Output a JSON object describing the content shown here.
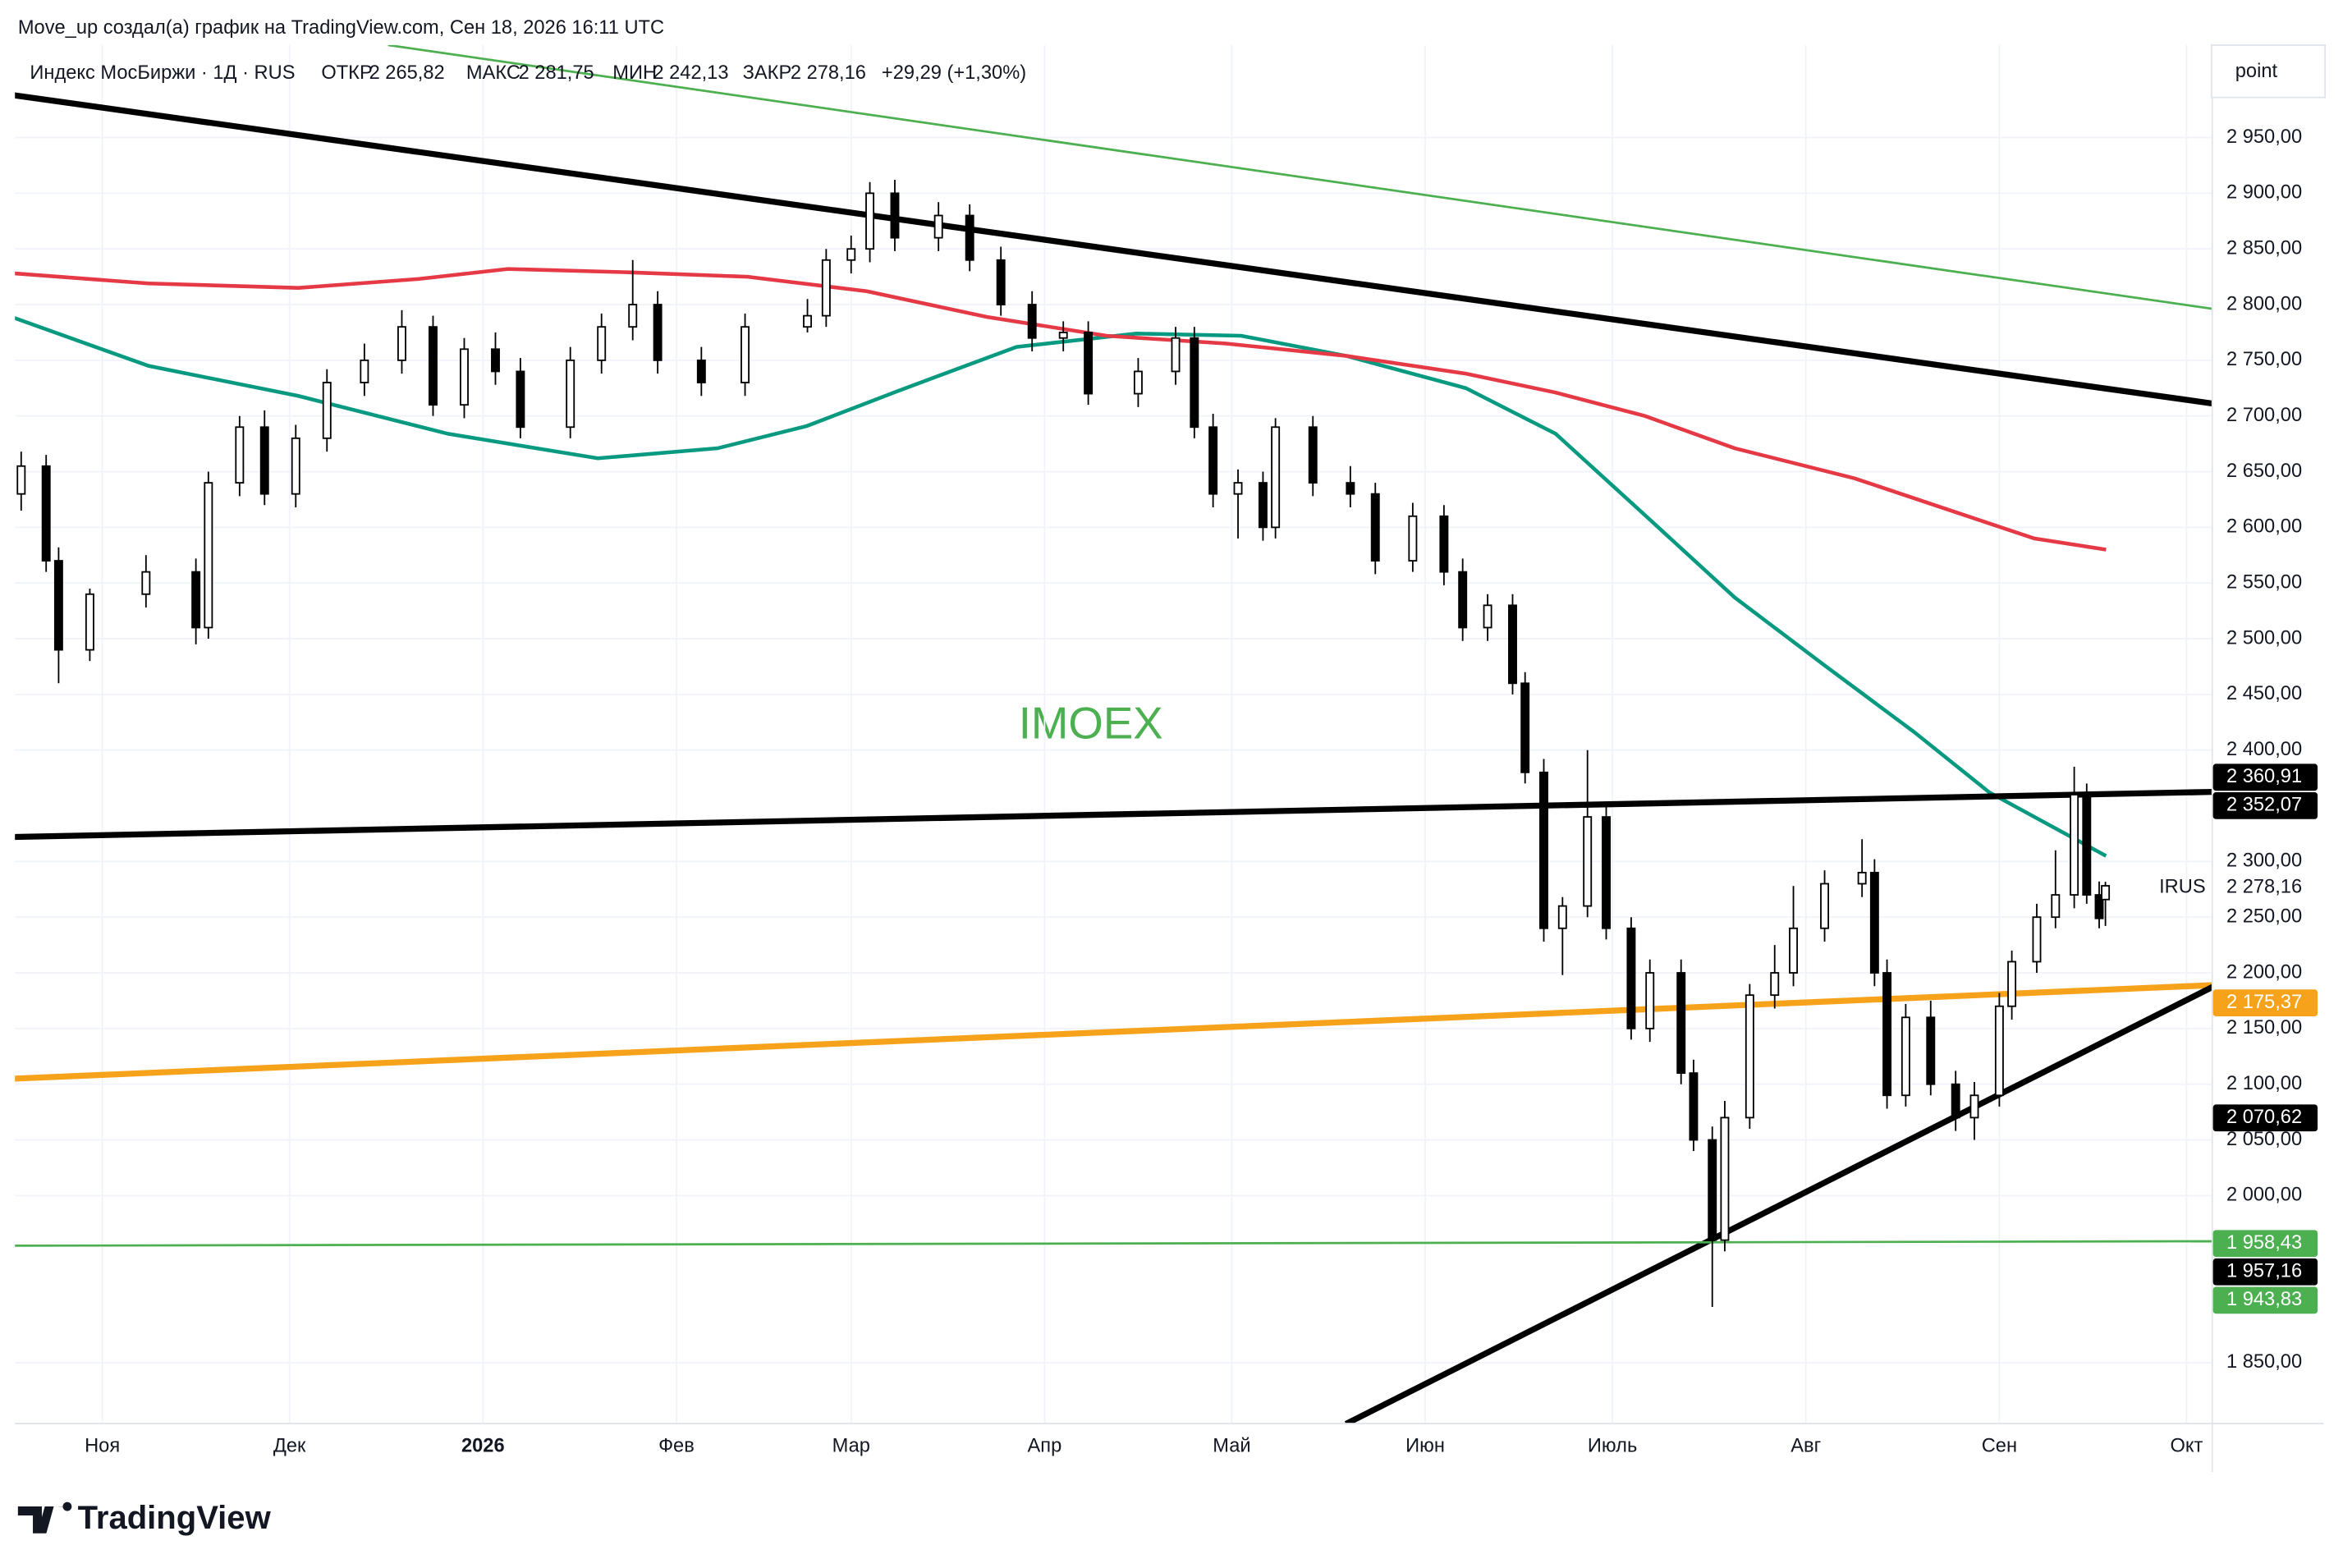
{
  "header": {
    "credit": "Move_up создал(а) график на TradingView.com, Сен 18, 2026 16:11 UTC",
    "symbol": "Индекс МосБиржи · 1Д · RUS",
    "open_label": "ОТКР",
    "open": "2 265,82",
    "high_label": "МАКС",
    "high": "2 281,75",
    "low_label": "МИН",
    "low": "2 242,13",
    "close_label": "ЗАКР",
    "close": "2 278,16",
    "change": "+29,29 (+1,30%)"
  },
  "footer": {
    "brand": "TradingView"
  },
  "chart_data": {
    "type": "candlestick",
    "watermark": "IMOEX",
    "unit_label": "point",
    "up_color": "#ffffff",
    "down_color": "#000000",
    "grid": true,
    "xlim": [
      -14,
      338
    ],
    "ylim": [
      1796,
      3033
    ],
    "xticks": [
      {
        "value": 0,
        "label": "Ноя"
      },
      {
        "value": 30,
        "label": "Дек"
      },
      {
        "value": 61,
        "label": "2026"
      },
      {
        "value": 92,
        "label": "Фев"
      },
      {
        "value": 120,
        "label": "Мар"
      },
      {
        "value": 151,
        "label": "Апр"
      },
      {
        "value": 181,
        "label": "Май"
      },
      {
        "value": 212,
        "label": "Июн"
      },
      {
        "value": 242,
        "label": "Июль"
      },
      {
        "value": 273,
        "label": "Авг"
      },
      {
        "value": 304,
        "label": "Сен"
      },
      {
        "value": 334,
        "label": "Окт"
      }
    ],
    "yticks": [
      {
        "value": 2950,
        "label": "2 950,00"
      },
      {
        "value": 2900,
        "label": "2 900,00"
      },
      {
        "value": 2850,
        "label": "2 850,00"
      },
      {
        "value": 2800,
        "label": "2 800,00"
      },
      {
        "value": 2750,
        "label": "2 750,00"
      },
      {
        "value": 2700,
        "label": "2 700,00"
      },
      {
        "value": 2650,
        "label": "2 650,00"
      },
      {
        "value": 2600,
        "label": "2 600,00"
      },
      {
        "value": 2550,
        "label": "2 550,00"
      },
      {
        "value": 2500,
        "label": "2 500,00"
      },
      {
        "value": 2450,
        "label": "2 450,00"
      },
      {
        "value": 2400,
        "label": "2 400,00"
      },
      {
        "value": 2300,
        "label": "2 300,00"
      },
      {
        "value": 2250,
        "label": "2 250,00"
      },
      {
        "value": 2200,
        "label": "2 200,00"
      },
      {
        "value": 2150,
        "label": "2 150,00"
      },
      {
        "value": 2100,
        "label": "2 100,00"
      },
      {
        "value": 2050,
        "label": "2 050,00"
      },
      {
        "value": 2000,
        "label": "2 000,00"
      },
      {
        "value": 1850,
        "label": "1 850,00"
      }
    ],
    "x": [
      -13,
      -9,
      -7,
      -2,
      7,
      15,
      17,
      22,
      26,
      31,
      36,
      42,
      48,
      53,
      58,
      63,
      67,
      75,
      80,
      85,
      89,
      96,
      103,
      113,
      116,
      120,
      123,
      127,
      134,
      139,
      144,
      149,
      154,
      158,
      166,
      172,
      175,
      178,
      182,
      186,
      188,
      194,
      200,
      204,
      210,
      215,
      218,
      222,
      226,
      228,
      231,
      234,
      238,
      241,
      245,
      248,
      253,
      255,
      258,
      260,
      264,
      268,
      271,
      276,
      282,
      284,
      286,
      289,
      293,
      297,
      300,
      304,
      306,
      310,
      313,
      316,
      318,
      320,
      321
    ],
    "open": [
      2630,
      2655,
      2570,
      2490,
      2540,
      2560,
      2510,
      2640,
      2690,
      2630,
      2680,
      2730,
      2750,
      2780,
      2710,
      2760,
      2740,
      2690,
      2750,
      2780,
      2800,
      2750,
      2730,
      2780,
      2790,
      2840,
      2850,
      2900,
      2860,
      2880,
      2840,
      2800,
      2770,
      2775,
      2720,
      2740,
      2770,
      2690,
      2630,
      2640,
      2600,
      2690,
      2640,
      2630,
      2570,
      2610,
      2560,
      2510,
      2530,
      2460,
      2380,
      2240,
      2260,
      2340,
      2240,
      2150,
      2200,
      2110,
      2050,
      1960,
      2070,
      2180,
      2200,
      2240,
      2280,
      2290,
      2200,
      2090,
      2160,
      2100,
      2070,
      2090,
      2170,
      2210,
      2250,
      2270,
      2360,
      2270,
      2265.82
    ],
    "high": [
      2668,
      2665,
      2582,
      2545,
      2575,
      2572,
      2650,
      2700,
      2705,
      2692,
      2742,
      2765,
      2795,
      2790,
      2770,
      2775,
      2752,
      2762,
      2792,
      2840,
      2812,
      2762,
      2792,
      2805,
      2850,
      2862,
      2910,
      2912,
      2892,
      2890,
      2852,
      2812,
      2785,
      2785,
      2752,
      2780,
      2780,
      2702,
      2652,
      2650,
      2698,
      2700,
      2655,
      2640,
      2622,
      2620,
      2572,
      2540,
      2540,
      2470,
      2392,
      2268,
      2400,
      2352,
      2250,
      2212,
      2212,
      2122,
      2062,
      2085,
      2190,
      2225,
      2278,
      2292,
      2320,
      2302,
      2212,
      2172,
      2175,
      2112,
      2102,
      2182,
      2220,
      2262,
      2310,
      2385,
      2370,
      2282,
      2281.75
    ],
    "low": [
      2615,
      2560,
      2460,
      2480,
      2528,
      2495,
      2500,
      2628,
      2620,
      2618,
      2668,
      2718,
      2738,
      2700,
      2698,
      2728,
      2680,
      2680,
      2738,
      2768,
      2738,
      2718,
      2718,
      2775,
      2780,
      2828,
      2838,
      2848,
      2848,
      2830,
      2790,
      2758,
      2758,
      2710,
      2708,
      2728,
      2680,
      2618,
      2590,
      2588,
      2590,
      2628,
      2618,
      2558,
      2560,
      2548,
      2498,
      2498,
      2450,
      2370,
      2228,
      2198,
      2250,
      2230,
      2140,
      2138,
      2100,
      2040,
      1900,
      1950,
      2060,
      2168,
      2188,
      2228,
      2268,
      2188,
      2078,
      2080,
      2090,
      2058,
      2050,
      2080,
      2158,
      2200,
      2240,
      2258,
      2262,
      2240,
      2242.13
    ],
    "close": [
      2655,
      2570,
      2490,
      2540,
      2560,
      2510,
      2640,
      2690,
      2630,
      2680,
      2730,
      2750,
      2780,
      2710,
      2760,
      2740,
      2690,
      2750,
      2780,
      2800,
      2750,
      2730,
      2780,
      2790,
      2840,
      2850,
      2900,
      2860,
      2880,
      2840,
      2800,
      2770,
      2775,
      2720,
      2740,
      2770,
      2690,
      2630,
      2640,
      2600,
      2690,
      2640,
      2630,
      2570,
      2610,
      2560,
      2510,
      2530,
      2460,
      2380,
      2240,
      2260,
      2340,
      2240,
      2150,
      2200,
      2110,
      2050,
      1960,
      2070,
      2180,
      2200,
      2240,
      2280,
      2290,
      2200,
      2090,
      2160,
      2100,
      2070,
      2090,
      2170,
      2210,
      2250,
      2270,
      2360,
      2270,
      2248.87,
      2278.16
    ],
    "overlays": [
      {
        "name": "MA 50",
        "color": "#089981",
        "width": 2.5,
        "x": [
          -14.1,
          7.4,
          31.4,
          55.4,
          79.4,
          98.6,
          112.9,
          127.3,
          146.5,
          165.7,
          182.5,
          199.3,
          218.5,
          232.9,
          247.2,
          261.6,
          276,
          290.4,
          302.4,
          321.1
        ],
        "values": [
          2788,
          2745,
          2718,
          2684,
          2662,
          2671,
          2691,
          2722,
          2762,
          2774,
          2772,
          2754,
          2725,
          2684,
          2611,
          2537,
          2476,
          2416,
          2362,
          2305
        ]
      },
      {
        "name": "MA 200",
        "color": "#e53945",
        "width": 2.5,
        "x": [
          -14.1,
          7.4,
          31.4,
          50.6,
          65,
          84.2,
          103.4,
          122.5,
          141.7,
          160.9,
          180.1,
          199.3,
          218.5,
          232.9,
          247.2,
          261.6,
          280.8,
          295.2,
          309.6,
          321.1
        ],
        "values": [
          2828,
          2819,
          2815,
          2823,
          2832,
          2829,
          2825,
          2812,
          2789,
          2772,
          2765,
          2754,
          2738,
          2721,
          2700,
          2671,
          2644,
          2617,
          2590,
          2580
        ]
      },
      {
        "name": "upper channel",
        "color": "#4caf50",
        "width": 1.5,
        "x": [
          45.8,
          338.4
        ],
        "values": [
          3033,
          2796
        ]
      },
      {
        "name": "resistance",
        "color": "#000000",
        "width": 4,
        "x": [
          -14.2,
          338.4
        ],
        "values": [
          2988,
          2711
        ]
      },
      {
        "name": "neckline",
        "color": "#000000",
        "width": 4,
        "x": [
          -14.2,
          338.4
        ],
        "values": [
          2322,
          2362.5
        ]
      },
      {
        "name": "orange trend",
        "color": "#f7a21b",
        "width": 4,
        "x": [
          -14.2,
          338.4
        ],
        "values": [
          2105,
          2189
        ]
      },
      {
        "name": "support",
        "color": "#000000",
        "width": 4,
        "x": [
          199.3,
          338.4
        ],
        "values": [
          1795,
          2188
        ]
      },
      {
        "name": "base",
        "color": "#4caf50",
        "width": 1.5,
        "x": [
          -14.2,
          338.4
        ],
        "values": [
          1955,
          1959
        ]
      }
    ],
    "price_labels": [
      {
        "value": 2360.91,
        "label": "2 360,91",
        "color": "#000000",
        "y": 520
      },
      {
        "value": 2352.07,
        "label": "2 352,07",
        "color": "#000000",
        "y": 539
      },
      {
        "value": 2278.16,
        "label": "2 278,16",
        "color": null,
        "y": 594,
        "name": "IRUS"
      },
      {
        "value": 2175.37,
        "label": "2 175,37",
        "color": "#f7a21b",
        "y": 671
      },
      {
        "value": 2070.62,
        "label": "2 070,62",
        "color": "#000000",
        "y": 748
      },
      {
        "value": 1958.43,
        "label": "1 958,43",
        "color": "#4caf50",
        "y": 832
      },
      {
        "value": 1957.16,
        "label": "1 957,16",
        "color": "#000000",
        "y": 851
      },
      {
        "value": 1943.83,
        "label": "1 943,83",
        "color": "#4caf50",
        "y": 870
      }
    ]
  }
}
